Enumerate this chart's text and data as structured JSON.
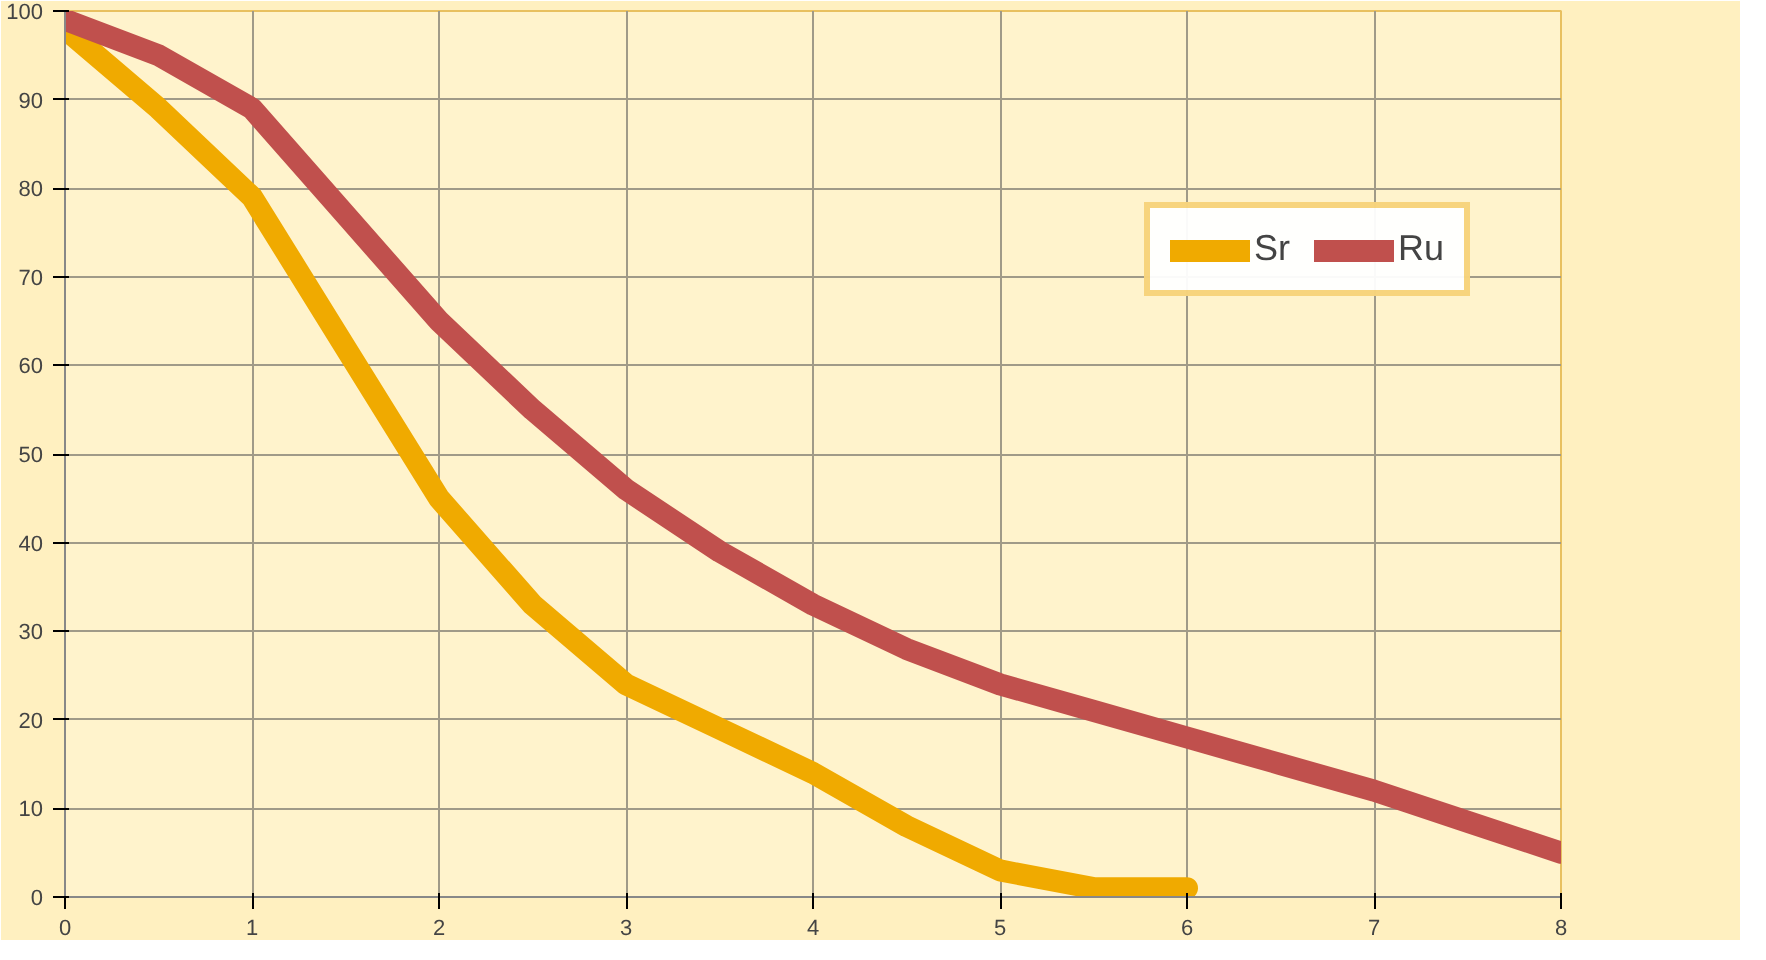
{
  "chart_data": {
    "type": "line",
    "x": [
      0,
      0.5,
      1,
      1.5,
      2,
      2.5,
      3,
      3.5,
      4,
      4.5,
      5,
      5.5,
      6
    ],
    "series": [
      {
        "name": "Sr",
        "color": "#f0aa00",
        "values": [
          98,
          89,
          79,
          62,
          45,
          33,
          24,
          19,
          14,
          8,
          3,
          1,
          1
        ]
      },
      {
        "name": "Ru",
        "color": "#c0504d",
        "x": [
          0,
          0.5,
          1,
          1.5,
          2,
          2.5,
          3,
          3.5,
          4,
          4.5,
          5,
          5.5,
          6,
          6.5,
          7,
          7.5,
          8
        ],
        "values": [
          99,
          95,
          89,
          77,
          65,
          55,
          46,
          39,
          33,
          28,
          24,
          21,
          18,
          15,
          12,
          8.5,
          5
        ]
      }
    ],
    "xlim": [
      0,
      8
    ],
    "ylim": [
      0,
      100
    ],
    "xticks": [
      0,
      1,
      2,
      3,
      4,
      5,
      6,
      7,
      8
    ],
    "yticks": [
      0,
      10,
      20,
      30,
      40,
      50,
      60,
      70,
      80,
      90,
      100
    ],
    "grid": true,
    "legend": "top right",
    "marker": "none",
    "line_style": "solid"
  }
}
